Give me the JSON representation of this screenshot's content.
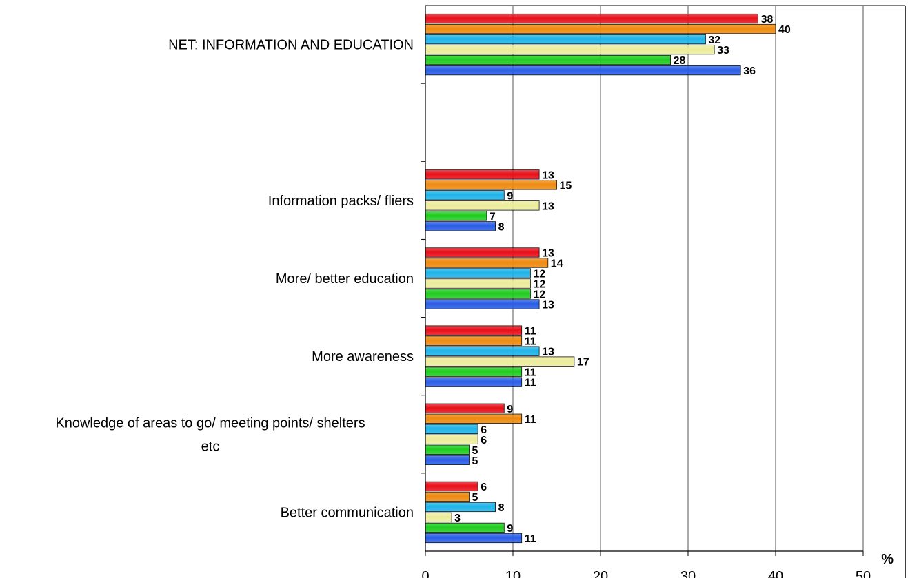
{
  "chart_data": {
    "type": "bar",
    "orientation": "horizontal",
    "categories": [
      "NET:  INFORMATION AND EDUCATION",
      "",
      "Information packs/ fliers",
      "More/ better education",
      "More awareness",
      "Knowledge of areas to go/ meeting points/ shelters etc",
      "Better communication"
    ],
    "series": [
      {
        "color": "#e8101a",
        "values": [
          38,
          null,
          13,
          13,
          11,
          9,
          6
        ]
      },
      {
        "color": "#ee8a10",
        "values": [
          40,
          null,
          15,
          14,
          11,
          11,
          5
        ]
      },
      {
        "color": "#1fb3e8",
        "values": [
          32,
          null,
          9,
          12,
          13,
          6,
          8
        ]
      },
      {
        "color": "#ecec9c",
        "values": [
          33,
          null,
          13,
          12,
          17,
          6,
          3
        ]
      },
      {
        "color": "#20cc20",
        "values": [
          28,
          null,
          7,
          12,
          11,
          5,
          9
        ]
      },
      {
        "color": "#2a5ee6",
        "values": [
          36,
          null,
          8,
          13,
          11,
          5,
          11
        ]
      }
    ],
    "x_ticks": [
      "0",
      "10",
      "20",
      "30",
      "40",
      "50"
    ],
    "xlim": [
      0,
      50
    ],
    "x_unit": "%",
    "grid": true,
    "data_labels": true
  }
}
